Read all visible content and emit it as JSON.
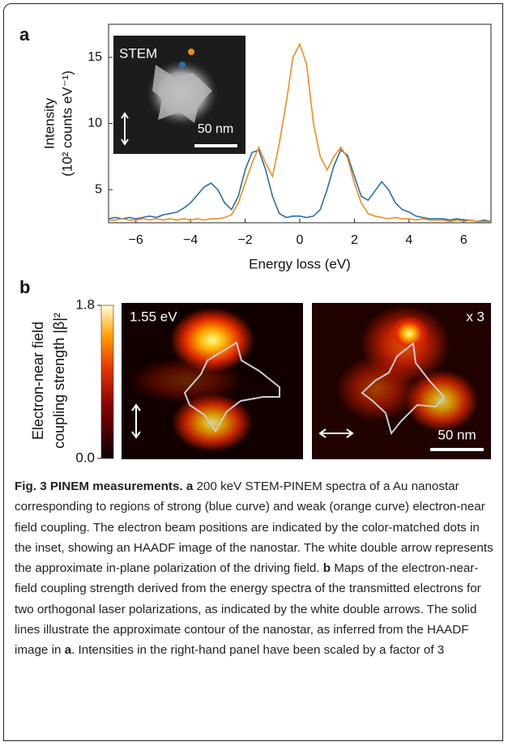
{
  "chart_data": {
    "type": "line",
    "panel_label": "a",
    "x_label": "Energy loss (eV)",
    "y_label": [
      "Intensity",
      "(10² counts eV⁻¹)"
    ],
    "xlim": [
      -7,
      7
    ],
    "xticks": [
      {
        "value": -6,
        "label": "−6"
      },
      {
        "value": -4,
        "label": "−4"
      },
      {
        "value": -2,
        "label": "−2"
      },
      0,
      2,
      4,
      6
    ],
    "ylim": [
      2.5,
      17.5
    ],
    "yticks": [
      5,
      10,
      15
    ],
    "x": [
      -7,
      -6.75,
      -6.5,
      -6.25,
      -6,
      -5.75,
      -5.5,
      -5.25,
      -5,
      -4.75,
      -4.5,
      -4.25,
      -4,
      -3.75,
      -3.5,
      -3.25,
      -3,
      -2.75,
      -2.5,
      -2.25,
      -2,
      -1.75,
      -1.5,
      -1.25,
      -1,
      -0.75,
      -0.5,
      -0.25,
      0,
      0.25,
      0.5,
      0.75,
      1,
      1.25,
      1.5,
      1.75,
      2,
      2.25,
      2.5,
      2.75,
      3,
      3.25,
      3.5,
      3.75,
      4,
      4.25,
      4.5,
      4.75,
      5,
      5.25,
      5.5,
      5.75,
      6,
      6.25,
      6.5,
      6.75,
      7
    ],
    "series": [
      {
        "color": "#2a6fa8",
        "values": [
          2.8,
          2.9,
          2.8,
          2.9,
          2.8,
          2.9,
          3.0,
          2.9,
          3.1,
          3.2,
          3.3,
          3.6,
          4.0,
          4.6,
          5.2,
          5.5,
          5.0,
          4.0,
          3.5,
          4.5,
          6.5,
          7.8,
          8.0,
          6.5,
          4.5,
          3.2,
          2.9,
          3.0,
          3.0,
          2.9,
          3.0,
          3.5,
          5.0,
          6.8,
          8.0,
          7.6,
          6.0,
          4.5,
          4.2,
          4.9,
          5.6,
          5.0,
          4.0,
          3.5,
          3.3,
          3.0,
          2.9,
          2.8,
          2.8,
          2.8,
          2.7,
          2.8,
          2.7,
          2.7,
          2.6,
          2.7,
          2.6
        ]
      },
      {
        "color": "#f28b1e",
        "values": [
          2.7,
          2.7,
          2.8,
          2.7,
          2.7,
          2.8,
          2.7,
          2.8,
          2.7,
          2.8,
          2.7,
          2.8,
          2.7,
          2.8,
          2.7,
          2.8,
          2.8,
          2.9,
          3.1,
          4.0,
          5.5,
          7.0,
          8.2,
          7.0,
          6.0,
          8.5,
          11.5,
          15.0,
          16.0,
          14.5,
          10.0,
          7.5,
          6.5,
          7.5,
          8.2,
          7.4,
          5.5,
          4.0,
          3.2,
          3.0,
          2.9,
          2.8,
          2.9,
          2.8,
          2.8,
          2.7,
          2.8,
          2.7,
          2.7,
          2.7,
          2.6,
          2.7,
          2.6,
          2.7,
          2.6,
          2.6,
          2.6
        ]
      }
    ],
    "inset": {
      "label": "STEM",
      "scale_bar": "50 nm"
    }
  },
  "panel_b": {
    "panel_label": "b",
    "colorbar_label": [
      "Electron-near field",
      "coupling strength |β|²"
    ],
    "colorbar_lim": [
      0,
      1.8
    ],
    "colorbar_ticks": [
      {
        "value": 0,
        "label": "0.0"
      },
      1.8
    ],
    "left_map_label": "1.55 eV",
    "right_map_label": "x 3",
    "scale_bar": "50 nm"
  },
  "caption": [
    {
      "text": "Fig. 3 PINEM measurements. a",
      "bold": true
    },
    {
      "text": " 200 keV STEM-PINEM spectra of a Au nanostar corresponding to regions of strong (blue curve) and weak (orange curve) electron-near field coupling. The electron beam positions are indicated by the color-matched dots in the inset, showing an HAADF image of the nanostar. The white double arrow represents the approximate in-plane polarization of the driving field. ",
      "bold": false
    },
    {
      "text": "b",
      "bold": true
    },
    {
      "text": " Maps of the electron-near-field coupling strength derived from the energy spectra of the transmitted electrons for two orthogonal laser polarizations, as indicated by the white double arrows. The solid lines illustrate the approximate contour of the nanostar, as inferred from the HAADF image in ",
      "bold": false
    },
    {
      "text": "a",
      "bold": true
    },
    {
      "text": ". Intensities in the right-hand panel have been scaled by a factor of 3",
      "bold": false
    }
  ]
}
